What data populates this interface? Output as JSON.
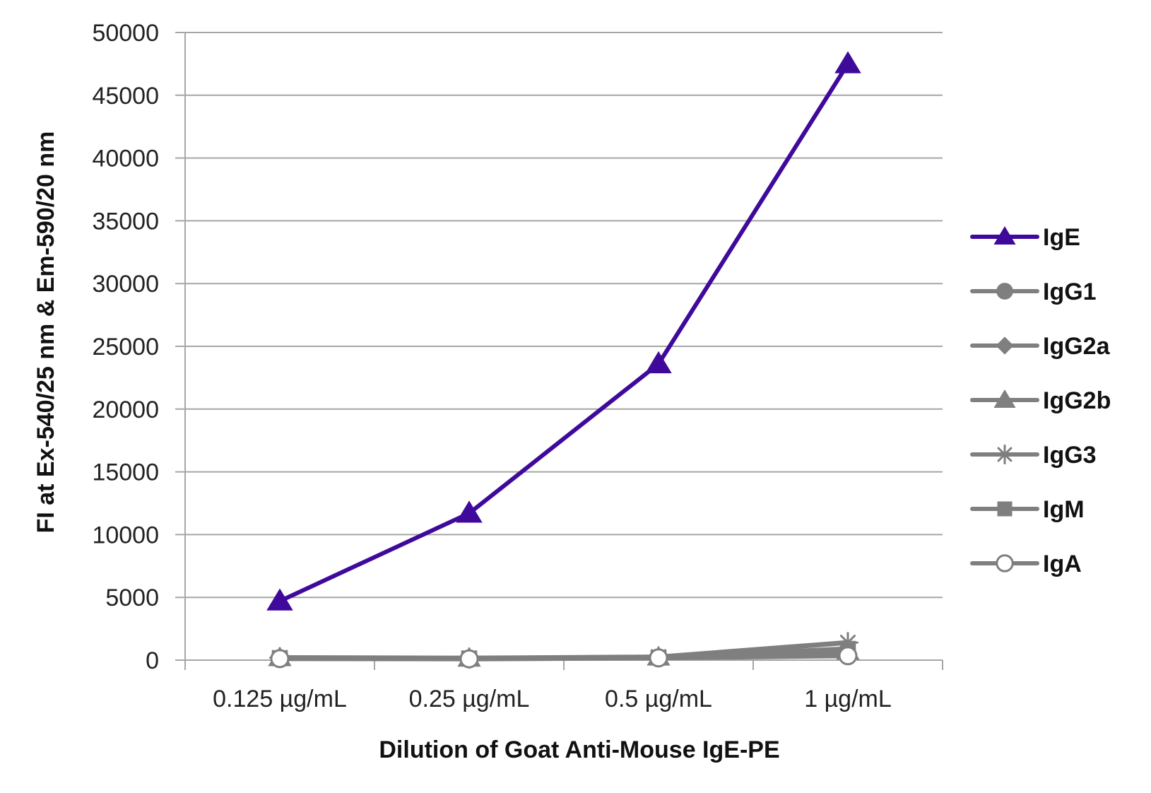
{
  "chart_data": {
    "type": "line",
    "title": "",
    "xlabel": "Dilution of Goat Anti-Mouse IgE-PE",
    "ylabel": "FI at Ex-540/25 nm & Em-590/20 nm",
    "categories": [
      "0.125 µg/mL",
      "0.25 µg/mL",
      "0.5 µg/mL",
      "1 µg/mL"
    ],
    "ylim": [
      0,
      50000
    ],
    "yticks": [
      0,
      5000,
      10000,
      15000,
      20000,
      25000,
      30000,
      35000,
      40000,
      45000,
      50000
    ],
    "grid": "horizontal",
    "legend": "right",
    "series": [
      {
        "name": "IgE",
        "marker": "triangle",
        "color": "#3f0a9b",
        "values": [
          4700,
          11700,
          23600,
          47500
        ]
      },
      {
        "name": "IgG1",
        "marker": "circle",
        "color": "#7f7f7f",
        "values": [
          150,
          120,
          200,
          400
        ]
      },
      {
        "name": "IgG2a",
        "marker": "diamond",
        "color": "#7f7f7f",
        "values": [
          150,
          120,
          200,
          500
        ]
      },
      {
        "name": "IgG2b",
        "marker": "triangle",
        "color": "#7f7f7f",
        "values": [
          180,
          140,
          230,
          700
        ]
      },
      {
        "name": "IgG3",
        "marker": "star",
        "color": "#7f7f7f",
        "values": [
          200,
          160,
          250,
          1400
        ]
      },
      {
        "name": "IgM",
        "marker": "square",
        "color": "#7f7f7f",
        "values": [
          150,
          130,
          200,
          900
        ]
      },
      {
        "name": "IgA",
        "marker": "circle-open",
        "color": "#7f7f7f",
        "values": [
          120,
          100,
          180,
          350
        ]
      }
    ]
  }
}
